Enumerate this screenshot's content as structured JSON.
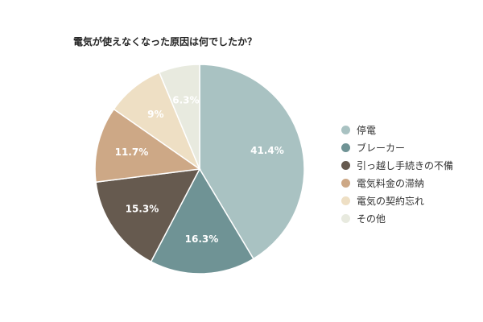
{
  "chart_data": {
    "type": "pie",
    "title": "電気が使えなくなった原因は何でしたか？",
    "legend_position": "right",
    "categories": [
      "停電",
      "ブレーカー",
      "引っ越し手続きの不備",
      "電気料金の滞納",
      "電気の契約忘れ",
      "その他"
    ],
    "values": [
      41.4,
      16.3,
      15.3,
      11.7,
      9,
      6.3
    ],
    "labels": [
      "41.4%",
      "16.3%",
      "15.3%",
      "11.7%",
      "9%",
      "6.3%"
    ],
    "colors": [
      "#a9c2c2",
      "#6f9395",
      "#665a4f",
      "#cda886",
      "#eedfc4",
      "#e8eadf"
    ],
    "label_colors": [
      "#ffffff",
      "#ffffff",
      "#ffffff",
      "#ffffff",
      "#ffffff",
      "#ffffff"
    ]
  }
}
